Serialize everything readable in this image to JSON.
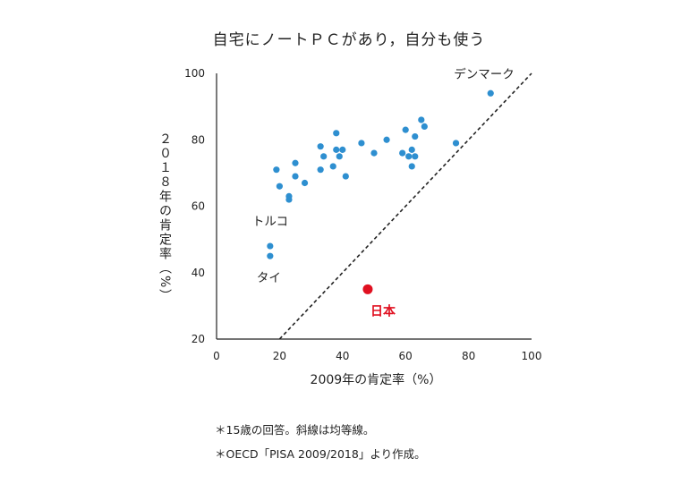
{
  "chart_data": {
    "type": "scatter",
    "title": "自宅にノートＰＣがあり，自分も使う",
    "xlabel": "2009年の肯定率（%）",
    "ylabel": "２０１８年の肯定率（%）",
    "xlim": [
      0,
      100
    ],
    "ylim": [
      20,
      100
    ],
    "xticks": [
      0,
      20,
      40,
      60,
      80,
      100
    ],
    "yticks": [
      20,
      40,
      60,
      80,
      100
    ],
    "grid": false,
    "reference_line": {
      "style": "dashed",
      "from": [
        20,
        20
      ],
      "to": [
        100,
        100
      ]
    },
    "series": [
      {
        "color": "#2e8fd0",
        "points": [
          [
            19,
            71
          ],
          [
            20,
            66
          ],
          [
            23,
            63
          ],
          [
            23,
            62
          ],
          [
            25,
            73
          ],
          [
            25,
            69
          ],
          [
            28,
            67
          ],
          [
            33,
            78
          ],
          [
            33,
            71
          ],
          [
            34,
            75
          ],
          [
            37,
            72
          ],
          [
            38,
            82
          ],
          [
            38,
            77
          ],
          [
            39,
            75
          ],
          [
            40,
            77
          ],
          [
            41,
            69
          ],
          [
            46,
            79
          ],
          [
            50,
            76
          ],
          [
            54,
            80
          ],
          [
            59,
            76
          ],
          [
            60,
            83
          ],
          [
            61,
            75
          ],
          [
            62,
            77
          ],
          [
            62,
            72
          ],
          [
            63,
            81
          ],
          [
            63,
            75
          ],
          [
            65,
            86
          ],
          [
            66,
            84
          ],
          [
            76,
            79
          ],
          [
            87,
            94
          ],
          [
            17,
            48
          ],
          [
            17,
            45
          ]
        ]
      },
      {
        "name": "日本",
        "color": "#e01020",
        "points": [
          [
            48,
            35
          ]
        ]
      }
    ],
    "annotations": [
      {
        "text": "デンマーク",
        "x": 87,
        "y": 94
      },
      {
        "text": "トルコ",
        "x": 17,
        "y": 48
      },
      {
        "text": "タイ",
        "x": 17,
        "y": 45
      },
      {
        "text": "日本",
        "x": 48,
        "y": 35
      }
    ]
  },
  "notes": [
    "＊15歳の回答。斜線は均等線。",
    "＊OECD「PISA 2009/2018」より作成。"
  ]
}
